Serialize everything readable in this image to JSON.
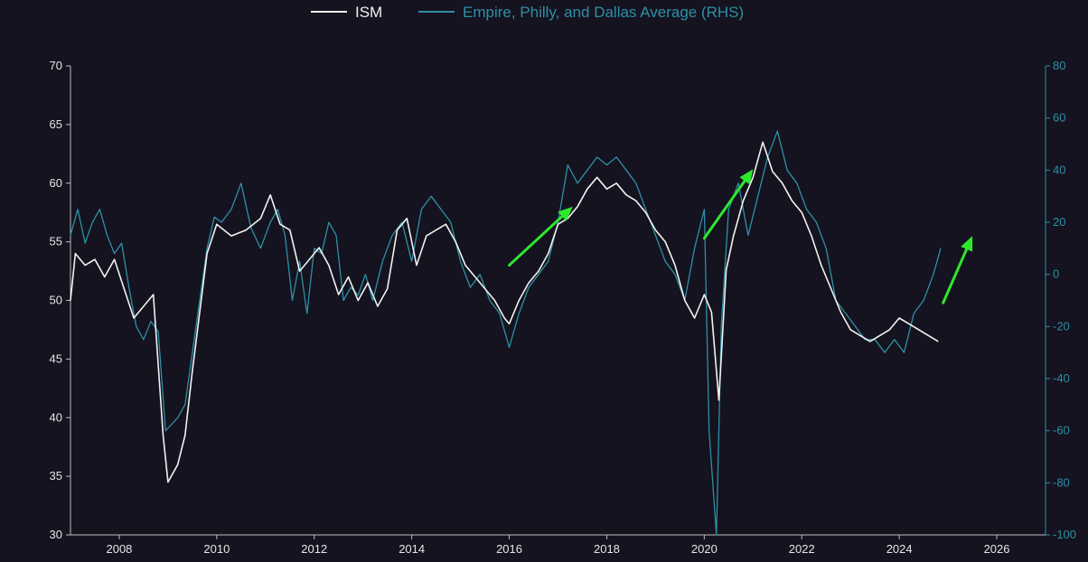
{
  "chart_data": {
    "type": "line",
    "title": "",
    "xlabel": "",
    "ylabel": "",
    "xlim": [
      2007.0,
      2027.0
    ],
    "ylim": [
      30,
      70
    ],
    "y2lim": [
      -100,
      80
    ],
    "x_ticks": [
      "2008",
      "2010",
      "2012",
      "2014",
      "2016",
      "2018",
      "2020",
      "2022",
      "2024",
      "2026"
    ],
    "y_ticks": [
      "70",
      "65",
      "60",
      "55",
      "50",
      "45",
      "40",
      "35",
      "30"
    ],
    "y2_ticks": [
      "80",
      "60",
      "40",
      "20",
      "0",
      "-20",
      "-40",
      "-60",
      "-80",
      "-100"
    ],
    "grid": false,
    "legend_position": "top-center",
    "background_color": "#14131f",
    "series": [
      {
        "name": "ISM",
        "axis": "left",
        "color": "#f2f2f2",
        "x": [
          2007.0,
          2007.1,
          2007.3,
          2007.5,
          2007.7,
          2007.9,
          2008.1,
          2008.3,
          2008.5,
          2008.7,
          2008.9,
          2009.0,
          2009.2,
          2009.35,
          2009.5,
          2009.65,
          2009.8,
          2010.0,
          2010.3,
          2010.6,
          2010.9,
          2011.1,
          2011.3,
          2011.5,
          2011.7,
          2011.9,
          2012.1,
          2012.3,
          2012.5,
          2012.7,
          2012.9,
          2013.1,
          2013.3,
          2013.5,
          2013.7,
          2013.9,
          2014.1,
          2014.3,
          2014.5,
          2014.7,
          2014.9,
          2015.1,
          2015.3,
          2015.5,
          2015.7,
          2015.9,
          2016.0,
          2016.2,
          2016.4,
          2016.6,
          2016.8,
          2017.0,
          2017.2,
          2017.4,
          2017.6,
          2017.8,
          2018.0,
          2018.2,
          2018.4,
          2018.6,
          2018.8,
          2019.0,
          2019.2,
          2019.4,
          2019.6,
          2019.8,
          2020.0,
          2020.15,
          2020.3,
          2020.45,
          2020.6,
          2020.8,
          2021.0,
          2021.2,
          2021.4,
          2021.6,
          2021.8,
          2022.0,
          2022.2,
          2022.4,
          2022.6,
          2022.8,
          2023.0,
          2023.2,
          2023.4,
          2023.6,
          2023.8,
          2024.0,
          2024.2,
          2024.4,
          2024.6,
          2024.8
        ],
        "values": [
          50.0,
          54.0,
          53.0,
          53.5,
          52.0,
          53.5,
          51.0,
          48.5,
          49.5,
          50.5,
          38.5,
          34.5,
          36.0,
          38.5,
          44.0,
          49.0,
          54.0,
          56.5,
          55.5,
          56.0,
          57.0,
          59.0,
          56.5,
          56.0,
          52.5,
          53.5,
          54.5,
          53.0,
          50.5,
          52.0,
          50.0,
          51.5,
          49.5,
          51.0,
          56.0,
          57.0,
          53.0,
          55.5,
          56.0,
          56.5,
          55.0,
          53.0,
          52.0,
          51.0,
          50.0,
          48.5,
          48.0,
          50.0,
          51.5,
          52.5,
          54.0,
          56.5,
          57.0,
          58.0,
          59.5,
          60.5,
          59.5,
          60.0,
          59.0,
          58.5,
          57.5,
          56.0,
          55.0,
          53.0,
          50.0,
          48.5,
          50.5,
          49.0,
          41.5,
          52.6,
          55.5,
          58.5,
          60.5,
          63.5,
          61.0,
          60.0,
          58.5,
          57.5,
          55.5,
          53.0,
          51.0,
          49.0,
          47.5,
          47.0,
          46.5,
          47.0,
          47.5,
          48.5,
          48.0,
          47.5,
          47.0,
          46.5
        ]
      },
      {
        "name": "Empire, Philly, and Dallas Average (RHS)",
        "axis": "right",
        "color": "#2f8fa6",
        "x": [
          2007.0,
          2007.15,
          2007.3,
          2007.45,
          2007.6,
          2007.75,
          2007.9,
          2008.05,
          2008.2,
          2008.35,
          2008.5,
          2008.65,
          2008.8,
          2008.95,
          2009.05,
          2009.2,
          2009.35,
          2009.5,
          2009.65,
          2009.8,
          2009.95,
          2010.1,
          2010.3,
          2010.5,
          2010.7,
          2010.9,
          2011.1,
          2011.25,
          2011.4,
          2011.55,
          2011.7,
          2011.85,
          2012.0,
          2012.15,
          2012.3,
          2012.45,
          2012.6,
          2012.75,
          2012.9,
          2013.05,
          2013.2,
          2013.4,
          2013.6,
          2013.8,
          2014.0,
          2014.2,
          2014.4,
          2014.6,
          2014.8,
          2015.0,
          2015.2,
          2015.4,
          2015.6,
          2015.8,
          2016.0,
          2016.2,
          2016.4,
          2016.6,
          2016.8,
          2017.0,
          2017.2,
          2017.4,
          2017.6,
          2017.8,
          2018.0,
          2018.2,
          2018.4,
          2018.6,
          2018.8,
          2019.0,
          2019.2,
          2019.4,
          2019.6,
          2019.8,
          2020.0,
          2020.1,
          2020.25,
          2020.35,
          2020.5,
          2020.7,
          2020.9,
          2021.1,
          2021.3,
          2021.5,
          2021.7,
          2021.9,
          2022.1,
          2022.3,
          2022.5,
          2022.7,
          2022.9,
          2023.1,
          2023.3,
          2023.5,
          2023.7,
          2023.9,
          2024.1,
          2024.3,
          2024.5,
          2024.7,
          2024.85
        ],
        "values": [
          15,
          25,
          12,
          20,
          25,
          15,
          8,
          12,
          -5,
          -20,
          -25,
          -18,
          -22,
          -60,
          -58,
          -55,
          -50,
          -30,
          -10,
          10,
          22,
          20,
          25,
          35,
          18,
          10,
          20,
          25,
          15,
          -10,
          5,
          -15,
          10,
          8,
          20,
          15,
          -10,
          -5,
          -8,
          0,
          -10,
          5,
          15,
          20,
          5,
          25,
          30,
          25,
          20,
          5,
          -5,
          0,
          -10,
          -15,
          -28,
          -15,
          -5,
          0,
          5,
          20,
          42,
          35,
          40,
          45,
          42,
          45,
          40,
          35,
          25,
          15,
          5,
          0,
          -10,
          10,
          25,
          -60,
          -100,
          -20,
          25,
          35,
          15,
          30,
          45,
          55,
          40,
          35,
          25,
          20,
          10,
          -10,
          -15,
          -20,
          -25,
          -25,
          -30,
          -25,
          -30,
          -15,
          -10,
          0,
          10
        ]
      }
    ],
    "annotations": [
      {
        "type": "arrow",
        "color": "#2ee82e",
        "from": [
          2016.0,
          53.0
        ],
        "to": [
          2017.3,
          58.0
        ]
      },
      {
        "type": "arrow",
        "color": "#2ee82e",
        "from": [
          2020.0,
          55.3
        ],
        "to": [
          2021.0,
          61.2
        ]
      },
      {
        "type": "arrow",
        "color": "#2ee82e",
        "from": [
          2024.9,
          49.8
        ],
        "to": [
          2025.5,
          55.5
        ]
      }
    ]
  }
}
